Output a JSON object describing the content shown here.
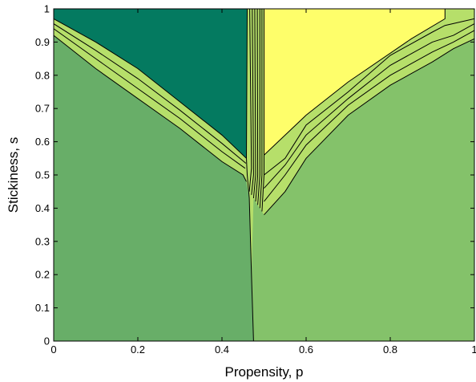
{
  "chart_data": {
    "type": "contour",
    "title": "",
    "xlabel": "Propensity, p",
    "ylabel": "Stickiness, s",
    "xlim": [
      0,
      1
    ],
    "ylim": [
      0,
      1
    ],
    "x_ticks": [
      "0",
      "0.2",
      "0.4",
      "0.6",
      "0.8",
      "1"
    ],
    "y_ticks": [
      "0",
      "0.1",
      "0.2",
      "0.3",
      "0.4",
      "0.5",
      "0.6",
      "0.7",
      "0.8",
      "0.9",
      "1"
    ],
    "colors": {
      "left_dark": "#047a60",
      "left_mid": "#68ae68",
      "left_light": "#7bbd6b",
      "right_light": "#84c26a",
      "right_mid": "#b6df6a",
      "right_bright": "#f1f66a",
      "right_top": "#fefe6a",
      "contour_line": "#000000"
    },
    "regions": [
      {
        "id": "region-lower-left",
        "color_key": "left_mid",
        "polygon": [
          [
            0,
            0
          ],
          [
            0.475,
            0
          ],
          [
            0.47,
            0.2
          ],
          [
            0.465,
            0.43
          ],
          [
            0.458,
            0.48
          ],
          [
            0.45,
            0.5
          ],
          [
            0.4,
            0.54
          ],
          [
            0.3,
            0.64
          ],
          [
            0.2,
            0.73
          ],
          [
            0.1,
            0.82
          ],
          [
            0,
            0.92
          ]
        ]
      },
      {
        "id": "region-lower-right",
        "color_key": "right_light",
        "polygon": [
          [
            0.475,
            0
          ],
          [
            1,
            0
          ],
          [
            1,
            0.91
          ],
          [
            0.95,
            0.88
          ],
          [
            0.9,
            0.84
          ],
          [
            0.8,
            0.77
          ],
          [
            0.7,
            0.68
          ],
          [
            0.6,
            0.55
          ],
          [
            0.55,
            0.45
          ],
          [
            0.5,
            0.38
          ],
          [
            0.485,
            0.41
          ],
          [
            0.475,
            0.43
          ],
          [
            0.47,
            0.2
          ]
        ]
      },
      {
        "id": "region-left-top",
        "color_key": "left_dark",
        "polygon": [
          [
            0,
            1
          ],
          [
            0.46,
            1
          ],
          [
            0.458,
            0.55
          ],
          [
            0.4,
            0.62
          ],
          [
            0.3,
            0.72
          ],
          [
            0.2,
            0.82
          ],
          [
            0.1,
            0.9
          ],
          [
            0,
            0.97
          ]
        ]
      },
      {
        "id": "region-right-top",
        "color_key": "right_top",
        "polygon": [
          [
            0.5,
            1
          ],
          [
            0.93,
            1
          ],
          [
            0.93,
            0.97
          ],
          [
            0.85,
            0.91
          ],
          [
            0.7,
            0.78
          ],
          [
            0.6,
            0.68
          ],
          [
            0.5,
            0.56
          ]
        ]
      }
    ],
    "contours": [
      {
        "id": "contour-left-1",
        "points": [
          [
            0,
            0.92
          ],
          [
            0.1,
            0.82
          ],
          [
            0.2,
            0.73
          ],
          [
            0.3,
            0.64
          ],
          [
            0.4,
            0.54
          ],
          [
            0.45,
            0.5
          ],
          [
            0.458,
            0.48
          ]
        ]
      },
      {
        "id": "contour-left-2",
        "points": [
          [
            0,
            0.94
          ],
          [
            0.1,
            0.85
          ],
          [
            0.2,
            0.76
          ],
          [
            0.3,
            0.67
          ],
          [
            0.4,
            0.57
          ],
          [
            0.455,
            0.52
          ]
        ]
      },
      {
        "id": "contour-left-3",
        "points": [
          [
            0,
            0.955
          ],
          [
            0.1,
            0.875
          ],
          [
            0.2,
            0.79
          ],
          [
            0.3,
            0.695
          ],
          [
            0.4,
            0.595
          ],
          [
            0.457,
            0.535
          ]
        ]
      },
      {
        "id": "contour-left-4",
        "points": [
          [
            0,
            0.97
          ],
          [
            0.1,
            0.9
          ],
          [
            0.2,
            0.82
          ],
          [
            0.3,
            0.72
          ],
          [
            0.4,
            0.62
          ],
          [
            0.458,
            0.55
          ]
        ]
      },
      {
        "id": "contour-center-1",
        "points": [
          [
            0.475,
            0
          ],
          [
            0.47,
            0.2
          ],
          [
            0.465,
            0.43
          ],
          [
            0.46,
            0.5
          ],
          [
            0.458,
            0.55
          ],
          [
            0.46,
            1
          ]
        ]
      },
      {
        "id": "contour-center-2",
        "points": [
          [
            0.465,
            0.45
          ],
          [
            0.47,
            0.52
          ],
          [
            0.466,
            1
          ]
        ]
      },
      {
        "id": "contour-center-3",
        "points": [
          [
            0.47,
            0.44
          ],
          [
            0.475,
            0.5
          ],
          [
            0.472,
            1
          ]
        ]
      },
      {
        "id": "contour-center-4",
        "points": [
          [
            0.475,
            0.43
          ],
          [
            0.48,
            0.5
          ],
          [
            0.478,
            1
          ]
        ]
      },
      {
        "id": "contour-center-5",
        "points": [
          [
            0.48,
            0.42
          ],
          [
            0.485,
            0.5
          ],
          [
            0.484,
            1
          ]
        ]
      },
      {
        "id": "contour-center-6",
        "points": [
          [
            0.485,
            0.41
          ],
          [
            0.49,
            0.5
          ],
          [
            0.49,
            1
          ]
        ]
      },
      {
        "id": "contour-center-7",
        "points": [
          [
            0.49,
            0.4
          ],
          [
            0.495,
            0.5
          ],
          [
            0.495,
            1
          ]
        ]
      },
      {
        "id": "contour-center-8",
        "points": [
          [
            0.495,
            0.39
          ],
          [
            0.5,
            0.5
          ],
          [
            0.5,
            1
          ]
        ]
      },
      {
        "id": "contour-right-1",
        "points": [
          [
            0.5,
            0.38
          ],
          [
            0.55,
            0.45
          ],
          [
            0.6,
            0.55
          ],
          [
            0.7,
            0.68
          ],
          [
            0.8,
            0.77
          ],
          [
            0.9,
            0.84
          ],
          [
            0.95,
            0.88
          ],
          [
            1,
            0.91
          ]
        ]
      },
      {
        "id": "contour-right-2",
        "points": [
          [
            0.5,
            0.42
          ],
          [
            0.55,
            0.5
          ],
          [
            0.6,
            0.59
          ],
          [
            0.7,
            0.71
          ],
          [
            0.8,
            0.8
          ],
          [
            0.9,
            0.87
          ],
          [
            0.95,
            0.9
          ],
          [
            1,
            0.935
          ]
        ]
      },
      {
        "id": "contour-right-3",
        "points": [
          [
            0.5,
            0.46
          ],
          [
            0.55,
            0.53
          ],
          [
            0.6,
            0.62
          ],
          [
            0.7,
            0.73
          ],
          [
            0.8,
            0.83
          ],
          [
            0.9,
            0.9
          ],
          [
            0.95,
            0.92
          ],
          [
            1,
            0.955
          ]
        ]
      },
      {
        "id": "contour-right-4",
        "points": [
          [
            0.5,
            0.5
          ],
          [
            0.55,
            0.55
          ],
          [
            0.6,
            0.65
          ],
          [
            0.7,
            0.75
          ],
          [
            0.8,
            0.86
          ],
          [
            0.9,
            0.93
          ],
          [
            0.93,
            0.95
          ],
          [
            1,
            0.97
          ]
        ]
      },
      {
        "id": "contour-right-5",
        "points": [
          [
            0.5,
            0.56
          ],
          [
            0.6,
            0.68
          ],
          [
            0.7,
            0.78
          ],
          [
            0.85,
            0.91
          ],
          [
            0.93,
            0.97
          ],
          [
            0.93,
            1
          ]
        ]
      }
    ]
  }
}
